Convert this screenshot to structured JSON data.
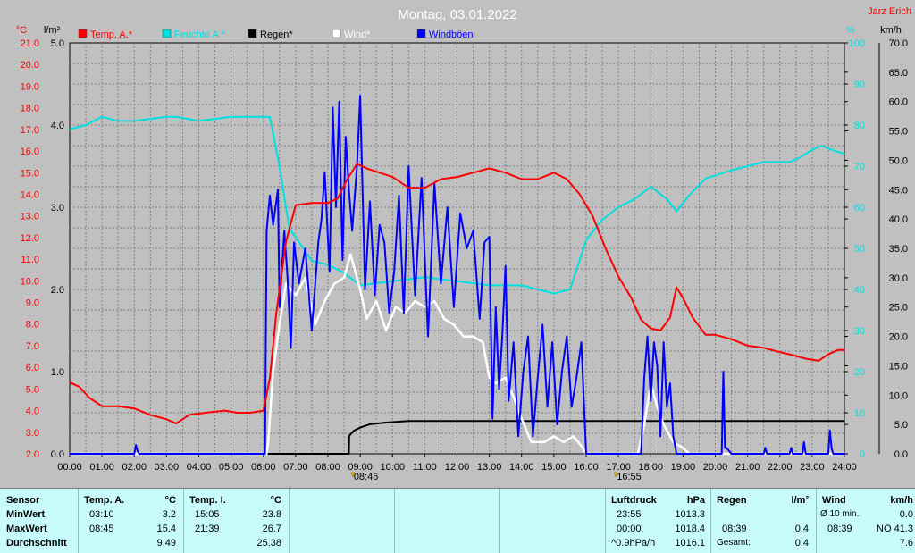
{
  "header": {
    "title": "Montag, 03.01.2022",
    "author": "Jarz Erich"
  },
  "axis_units": {
    "temp": "°C",
    "rain": "l/m²",
    "humidity": "%",
    "wind": "km/h"
  },
  "legend": [
    {
      "label": "Temp. A.*",
      "color": "#ff0000"
    },
    {
      "label": "Feuchte A.*",
      "color": "#00e0e0"
    },
    {
      "label": "Regen*",
      "color": "#000000"
    },
    {
      "label": "Wind*",
      "color": "#ffffff"
    },
    {
      "label": "Windböen",
      "color": "#0000ff"
    }
  ],
  "markers": [
    {
      "time": "08:46",
      "hour": 8.77
    },
    {
      "time": "16:55",
      "hour": 16.92
    }
  ],
  "chart_data": {
    "type": "line",
    "title": "Montag, 03.01.2022",
    "x_ticks": [
      "00:00",
      "01:00",
      "02:00",
      "03:00",
      "04:00",
      "05:00",
      "06:00",
      "07:00",
      "08:00",
      "09:00",
      "10:00",
      "11:00",
      "12:00",
      "13:00",
      "14:00",
      "15:00",
      "16:00",
      "17:00",
      "18:00",
      "19:00",
      "20:00",
      "21:00",
      "22:00",
      "23:00",
      "24:00"
    ],
    "xlim": [
      0,
      24
    ],
    "y_temp": {
      "label": "°C",
      "ticks": [
        "21.0",
        "20.0",
        "19.0",
        "18.0",
        "17.0",
        "16.0",
        "15.0",
        "14.0",
        "13.0",
        "12.0",
        "11.0",
        "10.0",
        "9.0",
        "8.0",
        "7.0",
        "6.0",
        "5.0",
        "4.0",
        "3.0",
        "2.0"
      ],
      "ylim": [
        2,
        21
      ]
    },
    "y_rain": {
      "label": "l/m²",
      "ticks": [
        "5.0",
        "4.0",
        "3.0",
        "2.0",
        "1.0",
        "0.0"
      ],
      "ylim": [
        0,
        5
      ]
    },
    "y_humidity": {
      "label": "%",
      "ticks": [
        "100",
        "90",
        "80",
        "70",
        "60",
        "50",
        "40",
        "30",
        "20",
        "10",
        "0"
      ],
      "ylim": [
        0,
        100
      ]
    },
    "y_wind": {
      "label": "km/h",
      "ticks": [
        "70.0",
        "65.0",
        "60.0",
        "55.0",
        "50.0",
        "45.0",
        "40.0",
        "35.0",
        "30.0",
        "25.0",
        "20.0",
        "15.0",
        "10.0",
        "5.0",
        "0.0"
      ],
      "ylim": [
        0,
        70
      ]
    },
    "grid": true,
    "series": [
      {
        "name": "Temp. A.*",
        "axis": "temp",
        "color": "#ff0000",
        "x": [
          0,
          0.3,
          0.6,
          1,
          1.5,
          2,
          2.5,
          3,
          3.3,
          3.7,
          4.2,
          4.8,
          5.2,
          5.6,
          6,
          6.2,
          6.4,
          6.7,
          7,
          7.5,
          8,
          8.3,
          8.6,
          8.9,
          9.2,
          9.6,
          10,
          10.5,
          11,
          11.5,
          12,
          12.5,
          13,
          13.5,
          14,
          14.5,
          15,
          15.4,
          15.8,
          16.2,
          16.6,
          17,
          17.4,
          17.7,
          18,
          18.3,
          18.6,
          18.8,
          19,
          19.3,
          19.7,
          20,
          20.5,
          21,
          21.5,
          22,
          22.3,
          22.8,
          23.2,
          23.5,
          23.8,
          24
        ],
        "y": [
          5.3,
          5.1,
          4.6,
          4.2,
          4.2,
          4.1,
          3.8,
          3.6,
          3.4,
          3.8,
          3.9,
          4.0,
          3.9,
          3.9,
          4.0,
          5.5,
          8.5,
          11.8,
          13.5,
          13.6,
          13.6,
          13.8,
          14.7,
          15.4,
          15.2,
          15.0,
          14.8,
          14.3,
          14.3,
          14.7,
          14.8,
          15.0,
          15.2,
          15.0,
          14.7,
          14.7,
          15.0,
          14.7,
          14.0,
          13.0,
          11.5,
          10.2,
          9.2,
          8.2,
          7.8,
          7.7,
          8.3,
          9.7,
          9.2,
          8.3,
          7.5,
          7.5,
          7.3,
          7.0,
          6.9,
          6.7,
          6.6,
          6.4,
          6.3,
          6.6,
          6.8,
          6.8
        ]
      },
      {
        "name": "Feuchte A.*",
        "axis": "humidity",
        "color": "#00e0e0",
        "x": [
          0,
          0.5,
          1,
          1.5,
          2,
          3,
          3.3,
          4,
          5,
          5.5,
          6.2,
          6.5,
          6.8,
          7.5,
          8,
          8.5,
          9,
          10,
          11,
          12,
          13,
          14,
          14.5,
          15,
          15.5,
          16,
          16.5,
          17,
          17.5,
          18,
          18.5,
          18.8,
          19.2,
          19.7,
          20.5,
          21.5,
          22.3,
          22.6,
          23,
          23.3,
          23.6,
          24
        ],
        "y": [
          79,
          80,
          82,
          81,
          81,
          82,
          82,
          81,
          82,
          82,
          82,
          70,
          55,
          47,
          46,
          44,
          41,
          42,
          43,
          42,
          41,
          41,
          40,
          39,
          40,
          52,
          57,
          60,
          62,
          65,
          62,
          59,
          63,
          67,
          69,
          71,
          71,
          72,
          74,
          75,
          74,
          73
        ]
      },
      {
        "name": "Regen*",
        "axis": "rain",
        "color": "#000000",
        "x": [
          0,
          8.65,
          8.66,
          8.8,
          8.9,
          9,
          9.3,
          9.8,
          10.5,
          24
        ],
        "y": [
          0,
          0,
          0.22,
          0.28,
          0.3,
          0.32,
          0.36,
          0.38,
          0.4,
          0.4
        ]
      },
      {
        "name": "Wind*",
        "axis": "wind",
        "color": "#ffffff",
        "x": [
          0,
          6.1,
          6.15,
          6.3,
          6.5,
          6.7,
          7.0,
          7.3,
          7.6,
          7.9,
          8.2,
          8.5,
          8.7,
          8.85,
          9.0,
          9.2,
          9.5,
          9.8,
          10.1,
          10.4,
          10.7,
          11.0,
          11.3,
          11.6,
          11.9,
          12.2,
          12.5,
          12.8,
          13.0,
          13.2,
          13.5,
          13.8,
          14.0,
          14.3,
          14.7,
          15.0,
          15.3,
          15.6,
          15.9,
          16.0,
          17.6,
          17.8,
          18.0,
          18.2,
          18.4,
          18.7,
          19.0,
          19.2,
          24
        ],
        "y": [
          0,
          0,
          2,
          14,
          22,
          29,
          27,
          30,
          22,
          26,
          29,
          30,
          34,
          31,
          28,
          23,
          26,
          21,
          25,
          24,
          26,
          25,
          26,
          23,
          22,
          20,
          20,
          19,
          13,
          12,
          13,
          9,
          6,
          2,
          2,
          3,
          2,
          3,
          1,
          0,
          0,
          5,
          12,
          8,
          5,
          2,
          1,
          0,
          0
        ]
      },
      {
        "name": "Windböen",
        "axis": "wind",
        "color": "#0000ff",
        "x": [
          0,
          2.0,
          2.05,
          2.1,
          2.15,
          6.05,
          6.1,
          6.2,
          6.3,
          6.45,
          6.5,
          6.65,
          6.75,
          6.85,
          6.95,
          7.1,
          7.3,
          7.5,
          7.7,
          7.8,
          7.9,
          8.05,
          8.15,
          8.25,
          8.35,
          8.45,
          8.55,
          8.65,
          8.75,
          8.9,
          9.0,
          9.15,
          9.3,
          9.45,
          9.6,
          9.75,
          9.9,
          10.05,
          10.2,
          10.35,
          10.5,
          10.7,
          10.9,
          11.1,
          11.3,
          11.5,
          11.7,
          11.9,
          12.1,
          12.3,
          12.5,
          12.7,
          12.85,
          13.0,
          13.1,
          13.2,
          13.3,
          13.4,
          13.5,
          13.6,
          13.75,
          13.9,
          14.05,
          14.2,
          14.35,
          14.5,
          14.65,
          14.8,
          14.95,
          15.1,
          15.25,
          15.4,
          15.55,
          15.7,
          15.85,
          16.0,
          17.7,
          17.8,
          17.9,
          18.0,
          18.1,
          18.2,
          18.3,
          18.4,
          18.5,
          18.6,
          18.7,
          18.8,
          20.2,
          20.25,
          20.3,
          20.35,
          20.5,
          21.5,
          21.55,
          21.6,
          22.3,
          22.35,
          22.4,
          22.7,
          22.75,
          22.8,
          23.5,
          23.55,
          23.6,
          23.65,
          24
        ],
        "y": [
          0,
          0,
          1.5,
          0.5,
          0,
          0,
          38,
          44,
          39,
          45,
          25,
          38,
          30,
          18,
          36,
          29,
          35,
          21,
          36,
          40,
          48,
          31,
          59,
          42,
          60,
          33,
          54,
          45,
          38,
          49,
          61,
          28,
          43,
          27,
          39,
          36,
          24,
          31,
          44,
          24,
          49,
          27,
          47,
          20,
          46,
          29,
          42,
          25,
          41,
          35,
          38,
          23,
          36,
          37,
          6,
          25,
          11,
          20,
          32,
          9,
          19,
          3,
          14,
          20,
          3,
          13,
          22,
          8,
          19,
          5,
          14,
          20,
          8,
          13,
          19,
          0,
          0,
          13,
          20,
          9,
          19,
          15,
          3,
          19,
          8,
          12,
          3,
          0,
          0,
          14,
          1,
          1,
          0,
          0,
          1,
          0,
          0,
          1,
          0,
          0,
          2,
          0,
          0,
          4,
          1,
          0,
          0
        ]
      }
    ]
  },
  "table": {
    "sensor": {
      "header": "Sensor",
      "rows": [
        "MinWert",
        "MaxWert",
        "Durchschnitt"
      ]
    },
    "temp_a": {
      "header": "Temp. A.",
      "unit": "°C",
      "min_time": "03:10",
      "min_val": "3.2",
      "max_time": "08:45",
      "max_val": "15.4",
      "avg": "9.49"
    },
    "temp_i": {
      "header": "Temp. I.",
      "unit": "°C",
      "min_time": "15:05",
      "min_val": "23.8",
      "max_time": "21:39",
      "max_val": "26.7",
      "avg": "25.38"
    },
    "luftdruck": {
      "header": "Luftdruck",
      "unit": "hPa",
      "min_time": "23:55",
      "min_val": "1013.3",
      "max_time": "00:00",
      "max_val": "1018.4",
      "trend": "^0.9hPa/h",
      "avg": "1016.1"
    },
    "regen": {
      "header": "Regen",
      "unit": "l/m²",
      "max_time": "08:39",
      "max_val": "0.4",
      "total_label": "Gesamt:",
      "total": "0.4"
    },
    "wind": {
      "header": "Wind",
      "unit": "km/h",
      "min_label": "Ø 10 min.",
      "min_val": "0.0",
      "max_time": "08:39",
      "max_val": "NO 41.3",
      "avg": "7.6"
    }
  }
}
